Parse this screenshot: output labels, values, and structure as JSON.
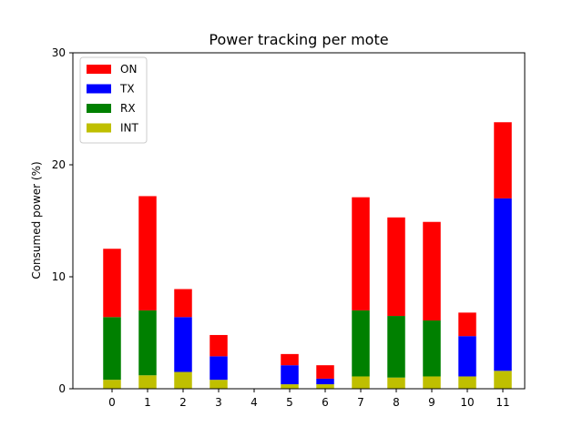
{
  "chart_data": {
    "type": "bar",
    "stacked": true,
    "title": "Power tracking per mote",
    "xlabel": "",
    "ylabel": "Consumed power (%)",
    "categories": [
      "0",
      "1",
      "2",
      "3",
      "4",
      "5",
      "6",
      "7",
      "8",
      "9",
      "10",
      "11"
    ],
    "ylim": [
      0,
      30
    ],
    "yticks": [
      "0",
      "10",
      "20",
      "30"
    ],
    "grid": false,
    "legend_position": "top-left",
    "series": [
      {
        "name": "INT",
        "color": "#bfbf00",
        "values": [
          0.8,
          1.2,
          1.5,
          0.8,
          0,
          0.4,
          0.4,
          1.1,
          1.0,
          1.1,
          1.1,
          1.6
        ]
      },
      {
        "name": "RX",
        "color": "#008000",
        "values": [
          5.6,
          5.8,
          0,
          0,
          0,
          0,
          0,
          5.9,
          5.5,
          5.0,
          0,
          0
        ]
      },
      {
        "name": "TX",
        "color": "#0000ff",
        "values": [
          0,
          0,
          4.9,
          2.1,
          0,
          1.7,
          0.5,
          0,
          0,
          0,
          3.6,
          15.4
        ]
      },
      {
        "name": "ON",
        "color": "#ff0000",
        "values": [
          6.1,
          10.2,
          2.5,
          1.9,
          0,
          1.0,
          1.2,
          10.1,
          8.8,
          8.8,
          2.1,
          6.8
        ]
      }
    ],
    "legend_order": [
      "ON",
      "TX",
      "RX",
      "INT"
    ]
  }
}
